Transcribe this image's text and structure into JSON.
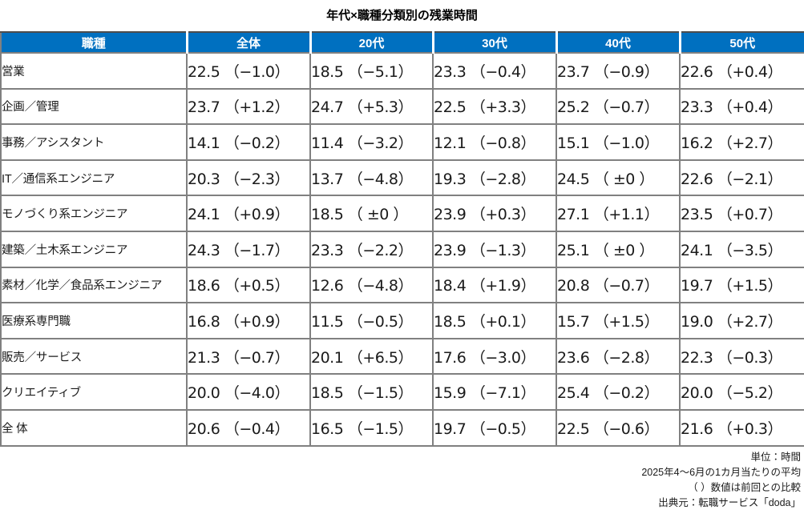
{
  "page": {
    "title": "年代×職種分類別の残業時間"
  },
  "colors": {
    "header_bg": "#0070C0",
    "header_text": "#FFFFFF",
    "grid_border": "#808080",
    "body_text": "#1A1A1A"
  },
  "chart_data": {
    "type": "table",
    "title": "年代×職種分類別の残業時間",
    "unit": "時間",
    "columns": [
      "職種",
      "全体",
      "20代",
      "30代",
      "40代",
      "50代"
    ],
    "column_keys": [
      "job-type",
      "overall",
      "20s",
      "30s",
      "40s",
      "50s"
    ],
    "rows": [
      {
        "label": "営業",
        "hours": [
          22.5,
          18.5,
          23.3,
          23.7,
          22.6
        ],
        "delta": [
          -1.0,
          -5.1,
          -0.4,
          -0.9,
          0.4
        ],
        "display": [
          "22.5 （−1.0）",
          "18.5 （−5.1）",
          "23.3 （−0.4）",
          "23.7 （−0.9）",
          "22.6 （+0.4）"
        ]
      },
      {
        "label": "企画／管理",
        "hours": [
          23.7,
          24.7,
          22.5,
          25.2,
          23.3
        ],
        "delta": [
          1.2,
          5.3,
          3.3,
          -0.7,
          0.4
        ],
        "display": [
          "23.7 （+1.2）",
          "24.7 （+5.3）",
          "22.5 （+3.3）",
          "25.2 （−0.7）",
          "23.3 （+0.4）"
        ]
      },
      {
        "label": "事務／アシスタント",
        "hours": [
          14.1,
          11.4,
          12.1,
          15.1,
          16.2
        ],
        "delta": [
          -0.2,
          -3.2,
          -0.8,
          -1.0,
          2.7
        ],
        "display": [
          "14.1 （−0.2）",
          "11.4 （−3.2）",
          "12.1 （−0.8）",
          "15.1 （−1.0）",
          "16.2 （+2.7）"
        ]
      },
      {
        "label": "IT／通信系エンジニア",
        "hours": [
          20.3,
          13.7,
          19.3,
          24.5,
          22.6
        ],
        "delta": [
          -2.3,
          -4.8,
          -2.8,
          0,
          -2.1
        ],
        "display": [
          "20.3 （−2.3）",
          "13.7 （−4.8）",
          "19.3 （−2.8）",
          "24.5 （ ±0 ）",
          "22.6 （−2.1）"
        ]
      },
      {
        "label": "モノづくり系エンジニア",
        "hours": [
          24.1,
          18.5,
          23.9,
          27.1,
          23.5
        ],
        "delta": [
          0.9,
          0,
          0.3,
          1.1,
          0.7
        ],
        "display": [
          "24.1 （+0.9）",
          "18.5 （ ±0 ）",
          "23.9 （+0.3）",
          "27.1 （+1.1）",
          "23.5 （+0.7）"
        ]
      },
      {
        "label": "建築／土木系エンジニア",
        "hours": [
          24.3,
          23.3,
          23.9,
          25.1,
          24.1
        ],
        "delta": [
          -1.7,
          -2.2,
          -1.3,
          0,
          -3.5
        ],
        "display": [
          "24.3 （−1.7）",
          "23.3 （−2.2）",
          "23.9 （−1.3）",
          "25.1 （ ±0 ）",
          "24.1 （−3.5）"
        ]
      },
      {
        "label": "素材／化学／食品系エンジニア",
        "hours": [
          18.6,
          12.6,
          18.4,
          20.8,
          19.7
        ],
        "delta": [
          0.5,
          -4.8,
          1.9,
          -0.7,
          1.5
        ],
        "display": [
          "18.6 （+0.5）",
          "12.6 （−4.8）",
          "18.4 （+1.9）",
          "20.8 （−0.7）",
          "19.7 （+1.5）"
        ]
      },
      {
        "label": "医療系専門職",
        "hours": [
          16.8,
          11.5,
          18.5,
          15.7,
          19.0
        ],
        "delta": [
          0.9,
          -0.5,
          0.1,
          1.5,
          2.7
        ],
        "display": [
          "16.8 （+0.9）",
          "11.5 （−0.5）",
          "18.5 （+0.1）",
          "15.7 （+1.5）",
          "19.0 （+2.7）"
        ]
      },
      {
        "label": "販売／サービス",
        "hours": [
          21.3,
          20.1,
          17.6,
          23.6,
          22.3
        ],
        "delta": [
          -0.7,
          6.5,
          -3.0,
          -2.8,
          -0.3
        ],
        "display": [
          "21.3 （−0.7）",
          "20.1 （+6.5）",
          "17.6 （−3.0）",
          "23.6 （−2.8）",
          "22.3 （−0.3）"
        ]
      },
      {
        "label": "クリエイティブ",
        "hours": [
          20.0,
          18.5,
          15.9,
          25.4,
          20.0
        ],
        "delta": [
          -4.0,
          -1.5,
          -7.1,
          -0.2,
          -5.2
        ],
        "display": [
          "20.0 （−4.0）",
          "18.5 （−1.5）",
          "15.9 （−7.1）",
          "25.4 （−0.2）",
          "20.0 （−5.2）"
        ]
      },
      {
        "label": "全 体",
        "hours": [
          20.6,
          16.5,
          19.7,
          22.5,
          21.6
        ],
        "delta": [
          -0.4,
          -1.5,
          -0.5,
          -0.6,
          0.3
        ],
        "display": [
          "20.6 （−0.4）",
          "16.5 （−1.5）",
          "19.7 （−0.5）",
          "22.5 （−0.6）",
          "21.6 （+0.3）"
        ]
      }
    ],
    "notes": [
      "単位：時間",
      "2025年4～6月の1カ月当たりの平均",
      "（ ）数値は前回との比較",
      "出典元：転職サービス「doda」"
    ]
  }
}
